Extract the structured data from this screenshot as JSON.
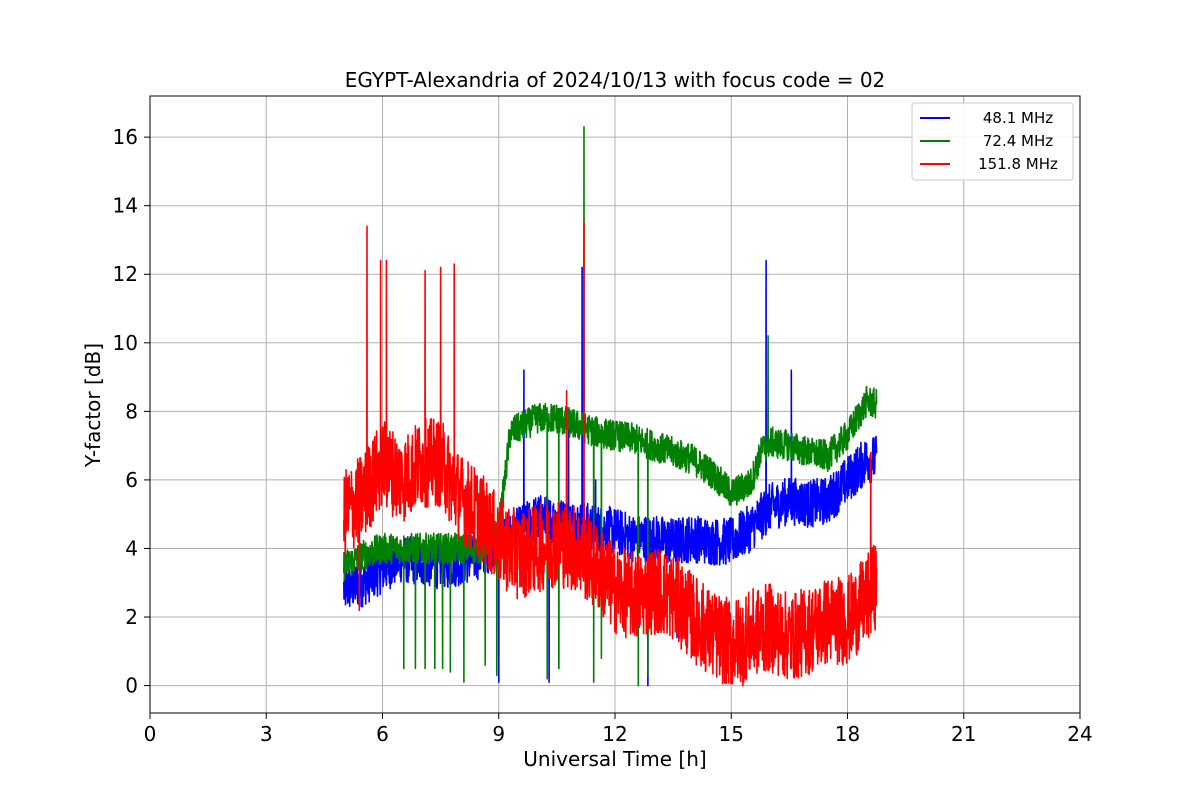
{
  "chart_data": {
    "type": "line",
    "title": "EGYPT-Alexandria of 2024/10/13 with focus code = 02",
    "xlabel": "Universal Time [h]",
    "ylabel": "Y-factor [dB]",
    "xlim": [
      0,
      24
    ],
    "ylim": [
      -0.8,
      17.2
    ],
    "xticks": [
      0,
      3,
      6,
      9,
      12,
      15,
      18,
      21,
      24
    ],
    "yticks": [
      0,
      2,
      4,
      6,
      8,
      10,
      12,
      14,
      16
    ],
    "grid": true,
    "legend_position": "top-right",
    "series": [
      {
        "name": "48.1 MHz",
        "color": "#0000ff",
        "base": [
          [
            5.0,
            2.8
          ],
          [
            5.5,
            3.0
          ],
          [
            6.0,
            3.4
          ],
          [
            6.5,
            3.7
          ],
          [
            7.0,
            3.6
          ],
          [
            7.5,
            3.5
          ],
          [
            8.0,
            3.6
          ],
          [
            8.5,
            3.8
          ],
          [
            9.0,
            4.2
          ],
          [
            9.5,
            4.5
          ],
          [
            10.0,
            4.9
          ],
          [
            10.5,
            4.8
          ],
          [
            11.0,
            4.7
          ],
          [
            11.5,
            4.6
          ],
          [
            12.0,
            4.5
          ],
          [
            12.5,
            4.3
          ],
          [
            13.0,
            4.3
          ],
          [
            13.5,
            4.2
          ],
          [
            14.0,
            4.3
          ],
          [
            14.5,
            4.2
          ],
          [
            15.0,
            4.2
          ],
          [
            15.5,
            4.6
          ],
          [
            16.0,
            5.2
          ],
          [
            16.5,
            5.4
          ],
          [
            17.0,
            5.3
          ],
          [
            17.5,
            5.4
          ],
          [
            18.0,
            6.0
          ],
          [
            18.5,
            6.6
          ],
          [
            18.75,
            6.6
          ]
        ],
        "noise": 0.7,
        "spikes": [
          [
            9.65,
            9.2
          ],
          [
            10.8,
            7.8
          ],
          [
            11.15,
            12.2
          ],
          [
            11.5,
            6.0
          ],
          [
            15.9,
            12.4
          ],
          [
            16.55,
            9.2
          ]
        ],
        "dips": [
          [
            9.0,
            0.1
          ],
          [
            10.3,
            0.1
          ],
          [
            10.55,
            0.5
          ],
          [
            12.85,
            0.0
          ],
          [
            13.6,
            1.4
          ]
        ]
      },
      {
        "name": "72.4 MHz",
        "color": "#008000",
        "base": [
          [
            5.0,
            3.5
          ],
          [
            5.5,
            3.8
          ],
          [
            6.0,
            4.0
          ],
          [
            6.5,
            4.0
          ],
          [
            7.0,
            4.0
          ],
          [
            7.5,
            4.0
          ],
          [
            8.0,
            4.0
          ],
          [
            8.5,
            4.0
          ],
          [
            9.0,
            4.5
          ],
          [
            9.3,
            7.4
          ],
          [
            9.5,
            7.5
          ],
          [
            10.0,
            7.8
          ],
          [
            10.5,
            7.8
          ],
          [
            11.0,
            7.6
          ],
          [
            11.5,
            7.4
          ],
          [
            12.0,
            7.3
          ],
          [
            12.5,
            7.2
          ],
          [
            13.0,
            7.0
          ],
          [
            13.5,
            6.8
          ],
          [
            14.0,
            6.6
          ],
          [
            14.5,
            6.2
          ],
          [
            15.0,
            5.6
          ],
          [
            15.5,
            5.9
          ],
          [
            15.8,
            6.9
          ],
          [
            16.0,
            7.1
          ],
          [
            16.5,
            7.0
          ],
          [
            17.0,
            6.8
          ],
          [
            17.5,
            6.7
          ],
          [
            18.0,
            7.3
          ],
          [
            18.5,
            8.3
          ],
          [
            18.75,
            8.2
          ]
        ],
        "noise": 0.45,
        "spikes": [
          [
            11.2,
            16.3
          ],
          [
            15.95,
            10.2
          ]
        ],
        "dips": [
          [
            6.55,
            0.5
          ],
          [
            6.85,
            0.5
          ],
          [
            7.1,
            0.5
          ],
          [
            7.35,
            0.5
          ],
          [
            7.55,
            0.5
          ],
          [
            7.75,
            0.4
          ],
          [
            8.1,
            0.1
          ],
          [
            8.65,
            0.6
          ],
          [
            8.95,
            0.3
          ],
          [
            10.25,
            0.2
          ],
          [
            10.55,
            0.5
          ],
          [
            11.45,
            0.1
          ],
          [
            11.65,
            0.8
          ],
          [
            12.6,
            0.0
          ],
          [
            12.85,
            0.3
          ]
        ]
      },
      {
        "name": "151.8 MHz",
        "color": "#ff0000",
        "base": [
          [
            5.0,
            5.0
          ],
          [
            5.5,
            5.5
          ],
          [
            6.0,
            6.5
          ],
          [
            6.5,
            6.0
          ],
          [
            7.0,
            6.5
          ],
          [
            7.5,
            6.5
          ],
          [
            8.0,
            5.5
          ],
          [
            8.5,
            5.0
          ],
          [
            9.0,
            4.2
          ],
          [
            9.5,
            3.8
          ],
          [
            10.0,
            4.0
          ],
          [
            10.5,
            4.2
          ],
          [
            11.0,
            4.0
          ],
          [
            11.5,
            3.5
          ],
          [
            12.0,
            2.8
          ],
          [
            12.5,
            2.6
          ],
          [
            13.0,
            2.8
          ],
          [
            13.5,
            2.6
          ],
          [
            14.0,
            2.0
          ],
          [
            14.5,
            1.5
          ],
          [
            15.0,
            1.2
          ],
          [
            15.5,
            1.5
          ],
          [
            16.0,
            1.7
          ],
          [
            16.5,
            1.4
          ],
          [
            17.0,
            1.6
          ],
          [
            17.5,
            1.9
          ],
          [
            18.0,
            1.9
          ],
          [
            18.5,
            2.5
          ],
          [
            18.75,
            3.0
          ]
        ],
        "noise": 1.3,
        "spikes": [
          [
            5.6,
            13.4
          ],
          [
            5.95,
            12.4
          ],
          [
            6.1,
            12.4
          ],
          [
            7.1,
            12.1
          ],
          [
            7.5,
            12.2
          ],
          [
            7.85,
            12.3
          ],
          [
            10.75,
            8.6
          ],
          [
            11.2,
            13.5
          ],
          [
            18.6,
            6.8
          ]
        ],
        "dips": [
          [
            5.4,
            2.2
          ],
          [
            15.3,
            0.0
          ]
        ]
      }
    ]
  }
}
